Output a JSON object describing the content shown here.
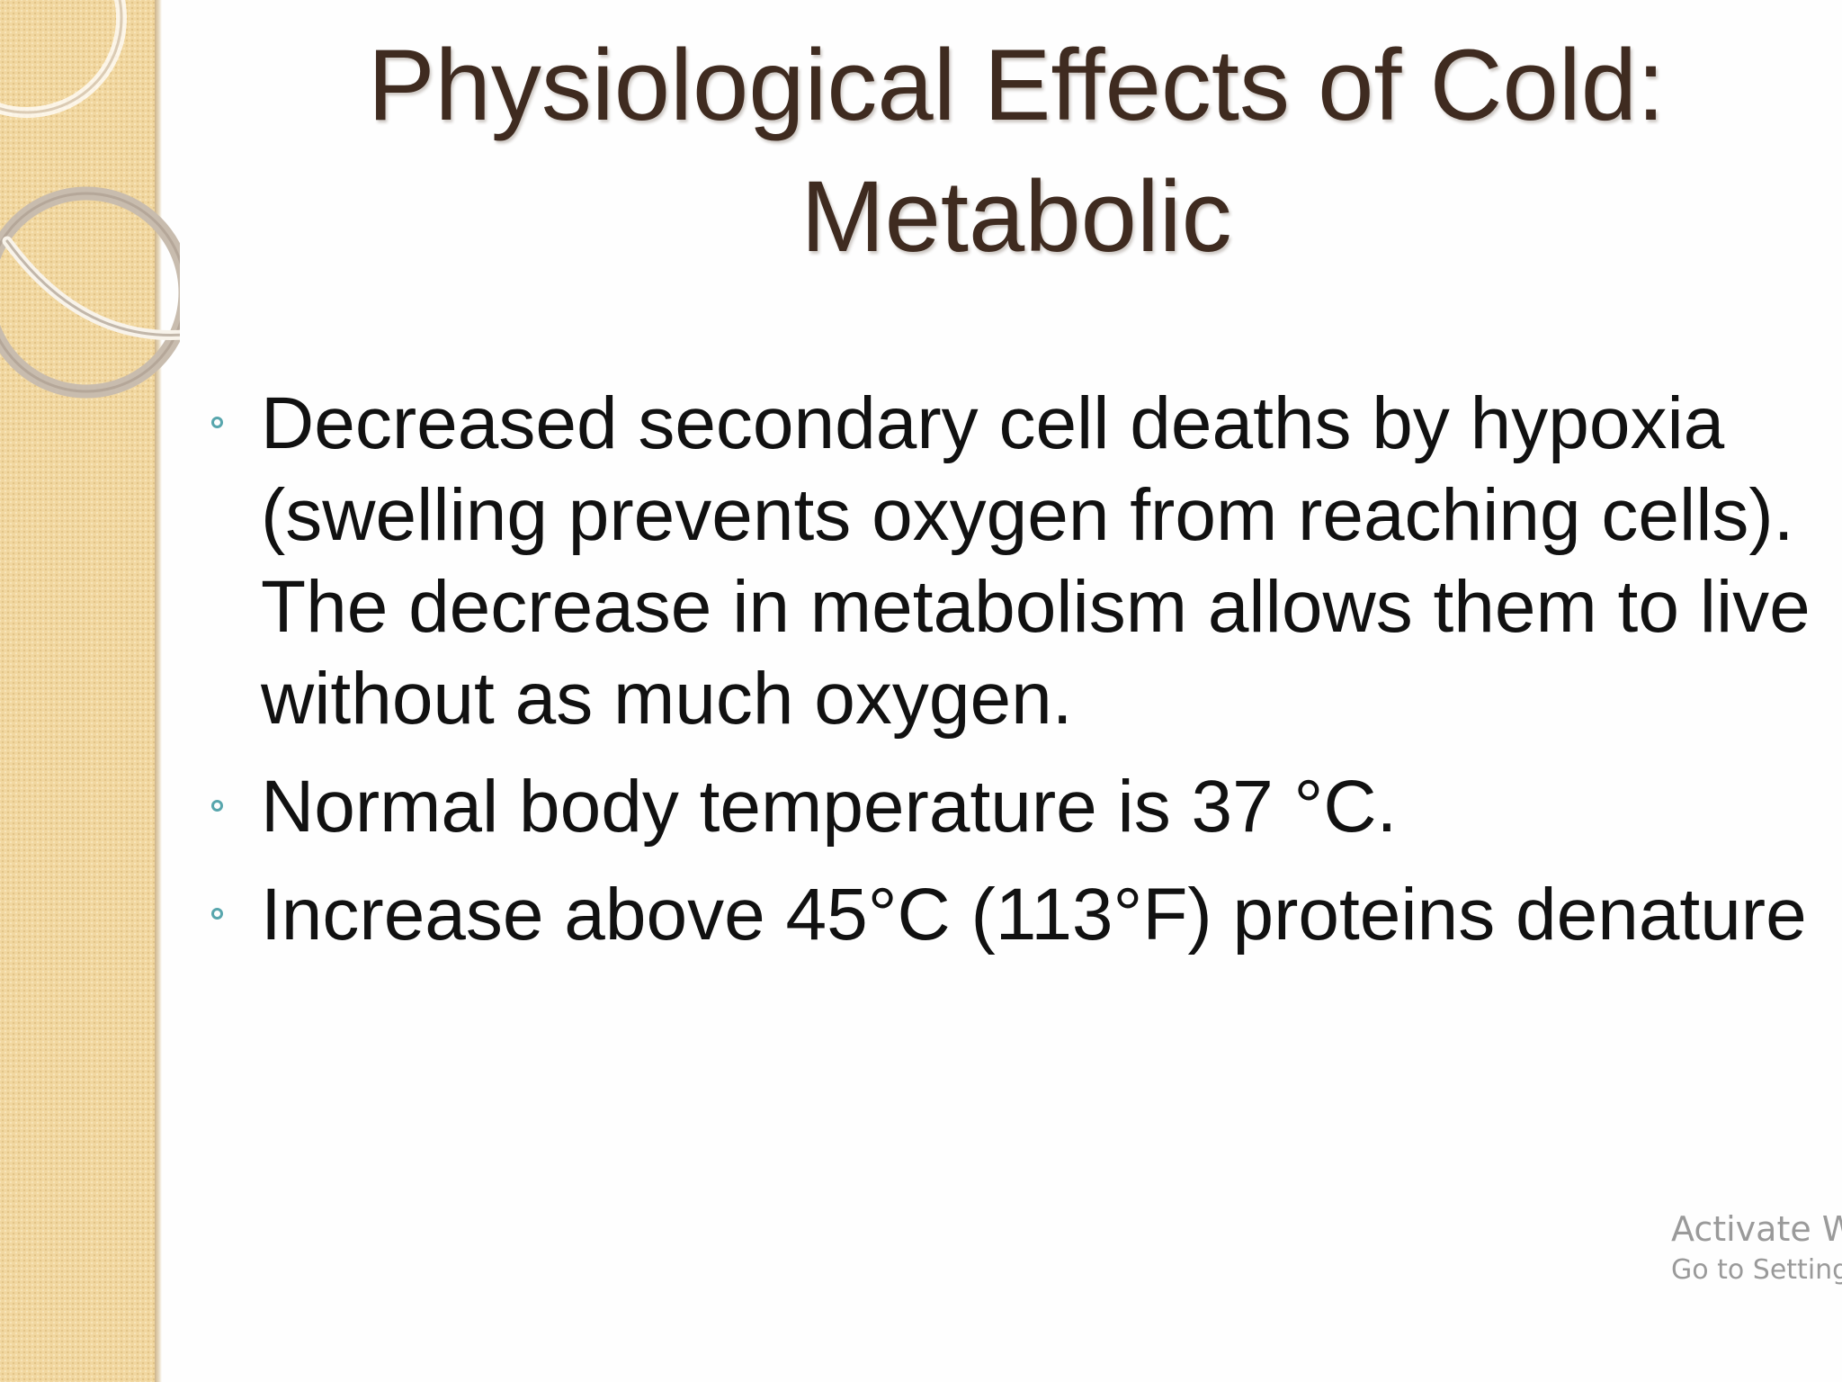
{
  "slide": {
    "title_line1": "Physiological Effects of Cold:",
    "title_line2": "Metabolic",
    "bullets": [
      "Decreased secondary cell deaths by hypoxia (swelling prevents oxygen from reaching cells).  The decrease in metabolism allows them to live without as much oxygen.",
      "Normal body temperature is 37 °C.",
      "Increase above 45°C (113°F) proteins denature"
    ],
    "bullet_icon": "hollow-circle-bullet-icon",
    "decoration": "interlocking-rings-icon"
  },
  "watermark": {
    "line1": "Activate Windows",
    "line2": "Go to Settings to activate Windows."
  },
  "colors": {
    "title": "#3f2b20",
    "body_text": "#111111",
    "side_band": "#f1d7a0",
    "bullet": "#58a6ad",
    "watermark": "#9a9a9a"
  }
}
